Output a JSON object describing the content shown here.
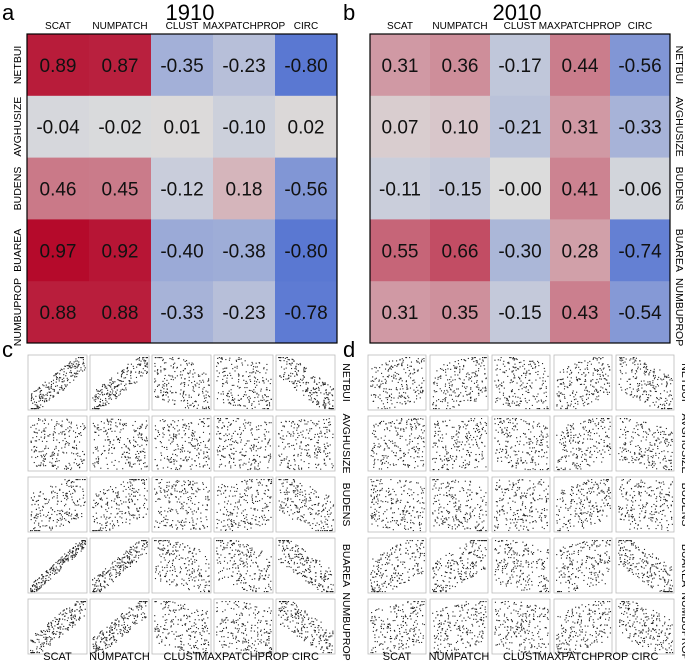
{
  "panels": {
    "a": {
      "letter": "a",
      "title": "1910"
    },
    "b": {
      "letter": "b",
      "title": "2010"
    },
    "c": {
      "letter": "c"
    },
    "d": {
      "letter": "d"
    }
  },
  "columns": [
    "SCAT",
    "NUMPATCH",
    "CLUST",
    "MAXPATCHPROP",
    "CIRC"
  ],
  "rows": [
    "NETBUI",
    "AVGHUSIZE",
    "BUDENS",
    "BUAREA",
    "NUMBUPROP"
  ],
  "chart_data": [
    {
      "type": "heatmap",
      "panel": "a",
      "title": "1910",
      "x_labels": [
        "SCAT",
        "NUMPATCH",
        "CLUST",
        "MAXPATCHPROP",
        "CIRC"
      ],
      "y_labels": [
        "NETBUI",
        "AVGHUSIZE",
        "BUDENS",
        "BUAREA",
        "NUMBUPROP"
      ],
      "values": [
        [
          0.89,
          0.87,
          -0.35,
          -0.23,
          -0.8
        ],
        [
          -0.04,
          -0.02,
          0.01,
          -0.1,
          0.02
        ],
        [
          0.46,
          0.45,
          -0.12,
          0.18,
          -0.56
        ],
        [
          0.97,
          0.92,
          -0.4,
          -0.38,
          -0.8
        ],
        [
          0.88,
          0.88,
          -0.33,
          -0.23,
          -0.78
        ]
      ],
      "labels": [
        [
          "0.89",
          "0.87",
          "-0.35",
          "-0.23",
          "-0.80"
        ],
        [
          "-0.04",
          "-0.02",
          "0.01",
          "-0.10",
          "0.02"
        ],
        [
          "0.46",
          "0.45",
          "-0.12",
          "0.18",
          "-0.56"
        ],
        [
          "0.97",
          "0.92",
          "-0.40",
          "-0.38",
          "-0.80"
        ],
        [
          "0.88",
          "0.88",
          "-0.33",
          "-0.23",
          "-0.78"
        ]
      ],
      "color_range": [
        -1,
        1
      ],
      "colors": {
        "negative": "#3a5fd0",
        "neutral": "#dcdcdc",
        "positive": "#b40426"
      }
    },
    {
      "type": "heatmap",
      "panel": "b",
      "title": "2010",
      "x_labels": [
        "SCAT",
        "NUMPATCH",
        "CLUST",
        "MAXPATCHPROP",
        "CIRC"
      ],
      "y_labels": [
        "NETBUI",
        "AVGHUSIZE",
        "BUDENS",
        "BUAREA",
        "NUMBUPROP"
      ],
      "values": [
        [
          0.31,
          0.36,
          -0.17,
          0.44,
          -0.56
        ],
        [
          0.07,
          0.1,
          -0.21,
          0.31,
          -0.33
        ],
        [
          -0.11,
          -0.15,
          -0.0,
          0.41,
          -0.06
        ],
        [
          0.55,
          0.66,
          -0.3,
          0.28,
          -0.74
        ],
        [
          0.31,
          0.35,
          -0.15,
          0.43,
          -0.54
        ]
      ],
      "labels": [
        [
          "0.31",
          "0.36",
          "-0.17",
          "0.44",
          "-0.56"
        ],
        [
          "0.07",
          "0.10",
          "-0.21",
          "0.31",
          "-0.33"
        ],
        [
          "-0.11",
          "-0.15",
          "-0.00",
          "0.41",
          "-0.06"
        ],
        [
          "0.55",
          "0.66",
          "-0.30",
          "0.28",
          "-0.74"
        ],
        [
          "0.31",
          "0.35",
          "-0.15",
          "0.43",
          "-0.54"
        ]
      ],
      "color_range": [
        -1,
        1
      ],
      "colors": {
        "negative": "#3a5fd0",
        "neutral": "#dcdcdc",
        "positive": "#b40426"
      }
    },
    {
      "type": "scatter",
      "panel": "c",
      "description_of_grid": "scatter matrix, rows by columns",
      "x_labels": [
        "SCAT",
        "NUMPATCH",
        "CLUST",
        "MAXPATCHPROP",
        "CIRC"
      ],
      "y_labels": [
        "NETBUI",
        "AVGHUSIZE",
        "BUDENS",
        "BUAREA",
        "NUMBUPROP"
      ],
      "correlations": [
        [
          0.89,
          0.87,
          -0.35,
          -0.23,
          -0.8
        ],
        [
          -0.04,
          -0.02,
          0.01,
          -0.1,
          0.02
        ],
        [
          0.46,
          0.45,
          -0.12,
          0.18,
          -0.56
        ],
        [
          0.97,
          0.92,
          -0.4,
          -0.38,
          -0.8
        ],
        [
          0.88,
          0.88,
          -0.33,
          -0.23,
          -0.78
        ]
      ],
      "points_per_plot": 220,
      "point_color": "#222222"
    },
    {
      "type": "scatter",
      "panel": "d",
      "description_of_grid": "scatter matrix, rows by columns",
      "x_labels": [
        "SCAT",
        "NUMPATCH",
        "CLUST",
        "MAXPATCHPROP",
        "CIRC"
      ],
      "y_labels": [
        "NETBUI",
        "AVGHUSIZE",
        "BUDENS",
        "BUAREA",
        "NUMBUPROP"
      ],
      "correlations": [
        [
          0.31,
          0.36,
          -0.17,
          0.44,
          -0.56
        ],
        [
          0.07,
          0.1,
          -0.21,
          0.31,
          -0.33
        ],
        [
          -0.11,
          -0.15,
          -0.0,
          0.41,
          -0.06
        ],
        [
          0.55,
          0.66,
          -0.3,
          0.28,
          -0.74
        ],
        [
          0.31,
          0.35,
          -0.15,
          0.43,
          -0.54
        ]
      ],
      "points_per_plot": 220,
      "point_color": "#222222"
    }
  ]
}
